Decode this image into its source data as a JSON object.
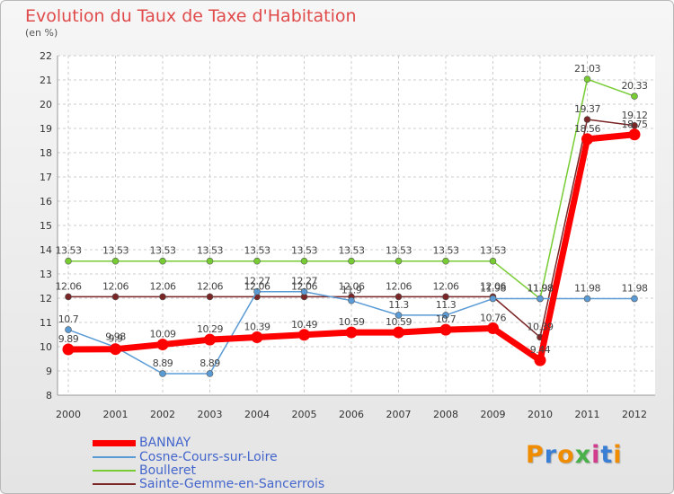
{
  "page": {
    "title": "Evolution du Taux de Taxe d'Habitation",
    "subtitle": "(en %)"
  },
  "chart_data": {
    "type": "line",
    "title": "Evolution du Taux de Taxe d'Habitation",
    "ylabel": "(en %)",
    "xlabel": "",
    "ylim": [
      8,
      22
    ],
    "yticks": [
      8,
      9,
      10,
      11,
      12,
      13,
      14,
      15,
      16,
      17,
      18,
      19,
      20,
      21,
      22
    ],
    "x": [
      "2000",
      "2001",
      "2002",
      "2003",
      "2004",
      "2005",
      "2006",
      "2007",
      "2008",
      "2009",
      "2010",
      "2011",
      "2012"
    ],
    "grid": true,
    "legend_position": "bottom-left",
    "series": [
      {
        "name": "BANNAY",
        "color": "#ff0000",
        "values": [
          9.89,
          9.9,
          10.09,
          10.29,
          10.39,
          10.49,
          10.59,
          10.59,
          10.7,
          10.76,
          9.44,
          18.56,
          18.75
        ],
        "labels": [
          "9.89",
          "9.9",
          "10.09",
          "10.29",
          "10.39",
          "10.49",
          "10.59",
          "10.59",
          "10.7",
          "10.76",
          "9.44",
          "18.56",
          "18.75"
        ]
      },
      {
        "name": "Cosne-Cours-sur-Loire",
        "color": "#5b9bd5",
        "values": [
          10.7,
          9.98,
          8.89,
          8.89,
          12.27,
          12.27,
          11.9,
          11.3,
          11.3,
          11.98,
          11.98,
          11.98,
          11.98
        ],
        "labels": [
          "10.7",
          "9.98",
          "8.89",
          "8.89",
          "12.27",
          "12.27",
          "11.9",
          "11.3",
          "11.3",
          "11.98",
          "11.98",
          "11.98",
          "11.98"
        ]
      },
      {
        "name": "Boulleret",
        "color": "#77cc33",
        "values": [
          13.53,
          13.53,
          13.53,
          13.53,
          13.53,
          13.53,
          13.53,
          13.53,
          13.53,
          13.53,
          11.98,
          21.03,
          20.33
        ],
        "labels": [
          "13.53",
          "13.53",
          "13.53",
          "13.53",
          "13.53",
          "13.53",
          "13.53",
          "13.53",
          "13.53",
          "13.53",
          "11.98",
          "21.03",
          "20.33"
        ]
      },
      {
        "name": "Sainte-Gemme-en-Sancerrois",
        "color": "#7a2626",
        "values": [
          12.06,
          12.06,
          12.06,
          12.06,
          12.06,
          12.06,
          12.06,
          12.06,
          12.06,
          12.06,
          10.39,
          19.37,
          19.12
        ],
        "labels": [
          "12.06",
          "12.06",
          "12.06",
          "12.06",
          "12.06",
          "12.06",
          "12.06",
          "12.06",
          "12.06",
          "12.06",
          "10.39",
          "19.37",
          "19.12"
        ]
      }
    ]
  },
  "legend": {
    "items": [
      {
        "label": "BANNAY",
        "color": "#ff0000"
      },
      {
        "label": "Cosne-Cours-sur-Loire",
        "color": "#5b9bd5"
      },
      {
        "label": "Boulleret",
        "color": "#77cc33"
      },
      {
        "label": "Sainte-Gemme-en-Sancerrois",
        "color": "#7a2626"
      }
    ]
  },
  "logo": {
    "text": "Proxiti"
  }
}
